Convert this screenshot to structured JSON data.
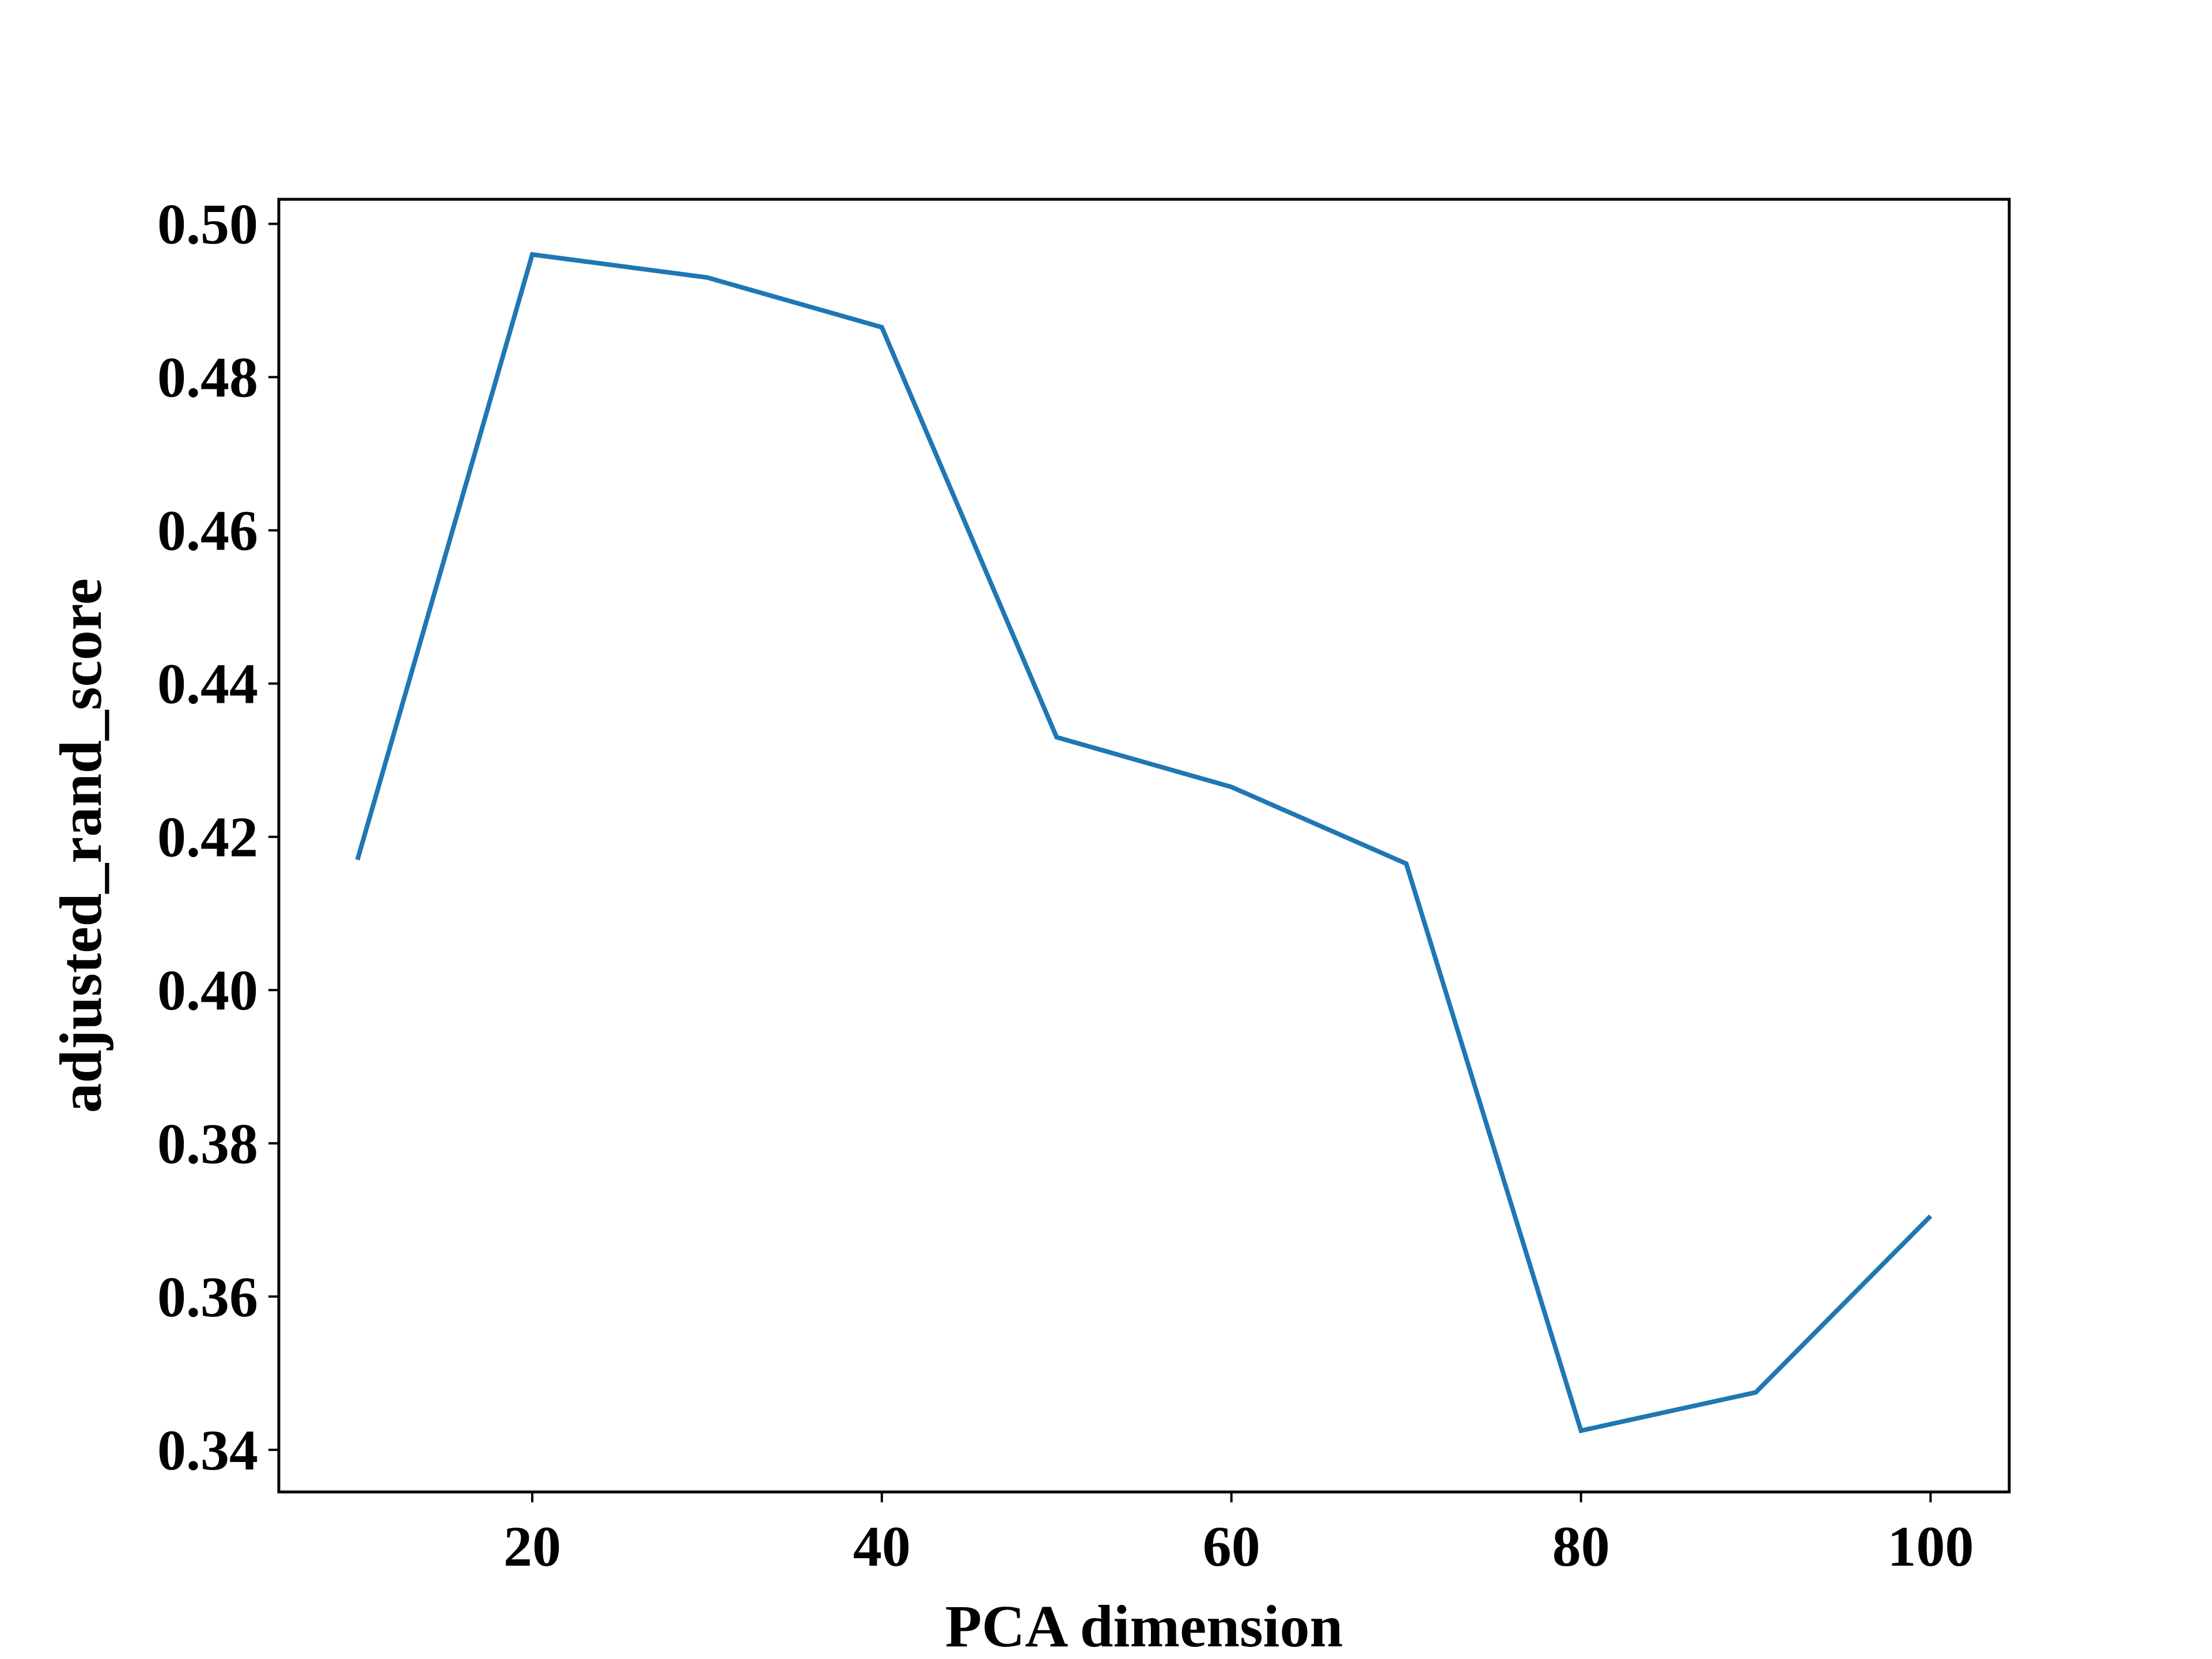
{
  "chart_data": {
    "type": "line",
    "title": "",
    "xlabel": "PCA dimension",
    "ylabel": "adjusted_rand_score",
    "x": [
      10,
      20,
      30,
      40,
      50,
      60,
      70,
      80,
      90,
      100
    ],
    "series": [
      {
        "values": [
          0.417,
          0.496,
          0.493,
          0.4865,
          0.433,
          0.4265,
          0.4165,
          0.3425,
          0.3475,
          0.3705
        ],
        "color": "#1f77b4"
      }
    ],
    "xlim": [
      5.5,
      104.5
    ],
    "ylim": [
      0.3345,
      0.5032
    ],
    "xticks": [
      20,
      40,
      60,
      80,
      100
    ],
    "xtick_labels": [
      "20",
      "40",
      "60",
      "80",
      "100"
    ],
    "yticks": [
      0.34,
      0.36,
      0.38,
      0.4,
      0.42,
      0.44,
      0.46,
      0.48,
      0.5
    ],
    "ytick_labels": [
      "0.34",
      "0.36",
      "0.38",
      "0.40",
      "0.42",
      "0.44",
      "0.46",
      "0.48",
      "0.50"
    ],
    "grid": false,
    "legend": false
  }
}
